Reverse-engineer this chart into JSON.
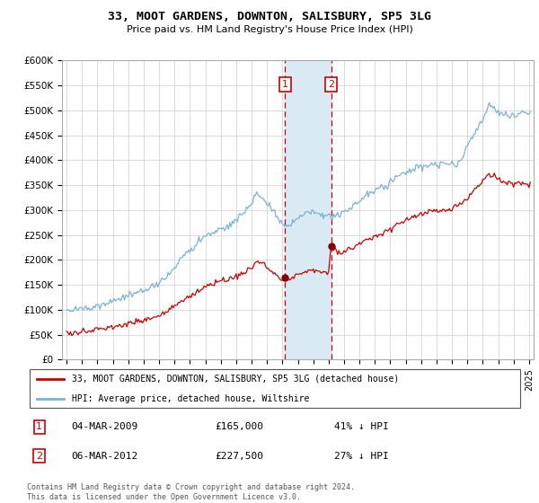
{
  "title": "33, MOOT GARDENS, DOWNTON, SALISBURY, SP5 3LG",
  "subtitle": "Price paid vs. HM Land Registry's House Price Index (HPI)",
  "ylim": [
    0,
    600000
  ],
  "yticks": [
    0,
    50000,
    100000,
    150000,
    200000,
    250000,
    300000,
    350000,
    400000,
    450000,
    500000,
    550000,
    600000
  ],
  "ytick_labels": [
    "£0",
    "£50K",
    "£100K",
    "£150K",
    "£200K",
    "£250K",
    "£300K",
    "£350K",
    "£400K",
    "£450K",
    "£500K",
    "£550K",
    "£600K"
  ],
  "xlim_start": 1994.7,
  "xlim_end": 2025.3,
  "sale1_year": 2009.17,
  "sale1_price": 165000,
  "sale1_label": "1",
  "sale1_date": "04-MAR-2009",
  "sale1_pct": "41%",
  "sale2_year": 2012.17,
  "sale2_price": 227500,
  "sale2_label": "2",
  "sale2_date": "06-MAR-2012",
  "sale2_pct": "27%",
  "red_line_color": "#cc0000",
  "blue_line_color": "#7ab3d4",
  "shade_color": "#daeaf5",
  "marker_box_color": "#cc0000",
  "legend_label_red": "33, MOOT GARDENS, DOWNTON, SALISBURY, SP5 3LG (detached house)",
  "legend_label_blue": "HPI: Average price, detached house, Wiltshire",
  "footer1": "Contains HM Land Registry data © Crown copyright and database right 2024.",
  "footer2": "This data is licensed under the Open Government Licence v3.0."
}
